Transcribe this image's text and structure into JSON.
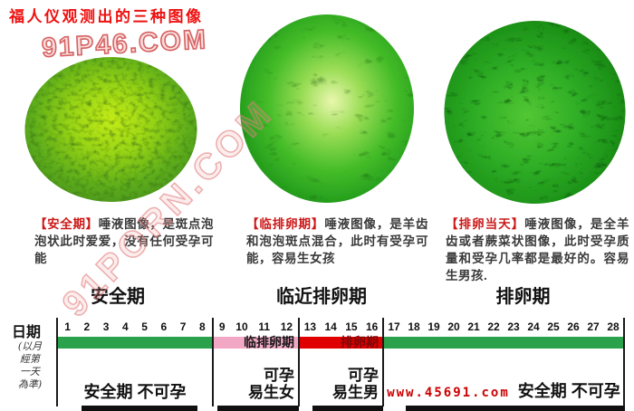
{
  "header": {
    "title": "福人仪观测出的三种图像"
  },
  "watermarks": {
    "top": "91P46.COM",
    "diagonal": "91PORN.COM"
  },
  "columns": [
    {
      "tag": "【安全期】",
      "description": "唾液图像，是斑点泡泡状此时爱爱，没有任何受孕可能",
      "label": "安全期",
      "circle_type": "spotted-bubble-sphere"
    },
    {
      "tag": "【临排卵期】",
      "description": "唾液图像，是羊齿和泡泡斑点混合，此时有受孕可能，容易生女孩",
      "label": "临近排卵期",
      "circle_type": "mixed-fern-bubble-sphere"
    },
    {
      "tag": "【排卵当天】",
      "description": "唾液图像，是全羊齿或者蕨菜状图像，此时受孕质量和受孕几率都是最好的。容易生男孩.",
      "label": "排卵期",
      "circle_type": "full-fern-sphere"
    }
  ],
  "timeline": {
    "axis_label": "日期",
    "axis_note": [
      "(以月",
      "經第",
      "一天",
      "為準)"
    ],
    "sections": [
      {
        "days": [
          1,
          2,
          3,
          4,
          5,
          6,
          7,
          8
        ],
        "bar_color": "#29a24b",
        "bar_label": "",
        "note": "安全期  不可孕"
      },
      {
        "days": [
          9,
          10,
          11,
          12
        ],
        "bar_color": "#f2a8c4",
        "bar_label": "临排卵期",
        "note_line1": "可孕",
        "note_line2": "易生女"
      },
      {
        "days": [
          13,
          14,
          15,
          16
        ],
        "bar_color": "#e00000",
        "bar_label": "排卵期",
        "note_line1": "可孕",
        "note_line2": "易生男"
      },
      {
        "days": [
          17,
          18,
          19,
          20,
          21,
          22,
          23,
          24,
          25,
          26,
          27,
          28
        ],
        "bar_color": "#29a24b",
        "bar_label": "",
        "url": "www.45691.com",
        "note": "安全期  不可孕"
      }
    ]
  },
  "colors": {
    "title_red": "#ee1111",
    "tag_red": "#cc1818",
    "bar_green": "#29a24b",
    "bar_pink": "#f2a8c4",
    "bar_red": "#e00000",
    "ovulation_label_dark_red": "#7c0606",
    "url_red": "#cc0000"
  },
  "chart_data": {
    "type": "timeline",
    "title": "日期 (以月經第一天為準)",
    "day_range": [
      1,
      28
    ],
    "segments": [
      {
        "days_start": 1,
        "days_end": 8,
        "color": "#29a24b",
        "bar_label": "",
        "annotation": "安全期 不可孕"
      },
      {
        "days_start": 9,
        "days_end": 12,
        "color": "#f2a8c4",
        "bar_label": "临排卵期",
        "annotation": "可孕 易生女"
      },
      {
        "days_start": 13,
        "days_end": 16,
        "color": "#e00000",
        "bar_label": "排卵期",
        "annotation": "可孕 易生男"
      },
      {
        "days_start": 17,
        "days_end": 28,
        "color": "#29a24b",
        "bar_label": "",
        "annotation": "www.45691.com 安全期 不可孕"
      }
    ]
  }
}
